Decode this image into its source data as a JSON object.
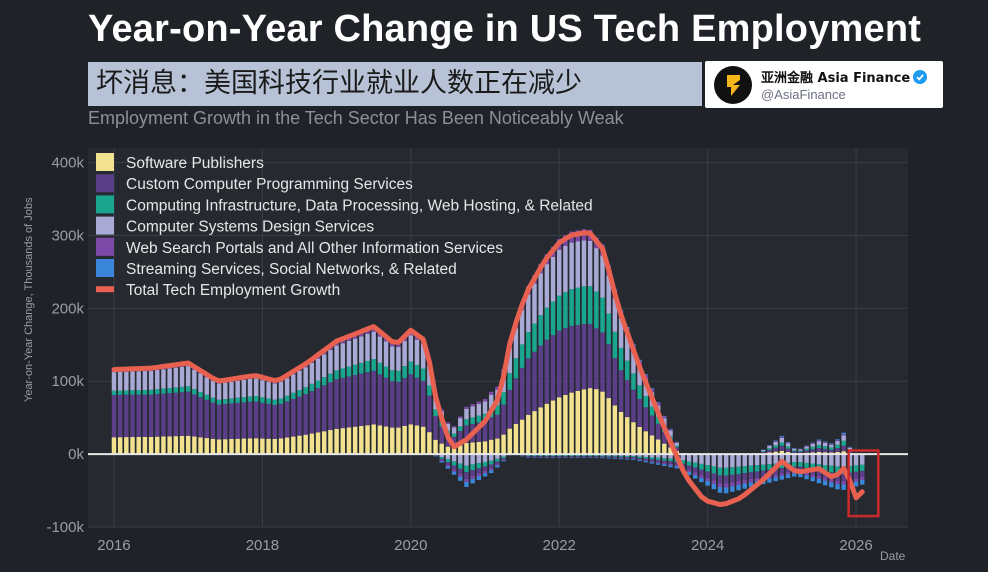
{
  "header": {
    "title": "Year-on-Year Change in US Tech Employment",
    "chinese_banner": "坏消息：美国科技行业就业人数正在减少",
    "subtitle": "Employment Growth in the Tech Sector Has Been Noticeably Weak"
  },
  "badge": {
    "name": "亚洲金融 Asia Finance",
    "handle": "@AsiaFinance",
    "logo_icon": "asia-finance-logo-icon",
    "verified_icon": "verified-check-icon"
  },
  "colors": {
    "background": "#1f2227",
    "grid": "#3a3e45",
    "axis_text": "#9a9da3",
    "zero_line": "#e8e8e8",
    "total_line": "#e8604f",
    "highlight_box": "#cc2a2a",
    "software": "#f2e28f",
    "custom_programming": "#5a3e88",
    "infrastructure": "#1aa68e",
    "systems_design": "#a9a9d6",
    "web_search": "#7c4aa6",
    "streaming": "#3a86d8"
  },
  "chart_data": {
    "type": "bar",
    "stacked": true,
    "title": "Year-on-Year Change in US Tech Employment",
    "xlabel": "Date",
    "ylabel": "Year-on-Year Change, Thousands of Jobs",
    "ylim": [
      -100,
      420
    ],
    "xlim": [
      2015.65,
      2026.7
    ],
    "y_ticks": [
      -100,
      0,
      100,
      200,
      300,
      400
    ],
    "y_tick_labels": [
      "-100k",
      "0k",
      "100k",
      "200k",
      "300k",
      "400k"
    ],
    "x_ticks": [
      2016,
      2018,
      2020,
      2022,
      2024,
      2026
    ],
    "x_tick_labels": [
      "2016",
      "2018",
      "2020",
      "2022",
      "2024",
      "2026"
    ],
    "legend_position": "top-left",
    "period": "monthly, Jan 2016 - Feb 2026",
    "legend": [
      {
        "name": "Software Publishers",
        "key": "software"
      },
      {
        "name": "Custom Computer Programming Services",
        "key": "custom_programming"
      },
      {
        "name": "Computing Infrastructure, Data Processing, Web Hosting, & Related",
        "key": "infrastructure"
      },
      {
        "name": "Computer Systems Design Services",
        "key": "systems_design"
      },
      {
        "name": "Web Search Portals and All Other Information Services",
        "key": "web_search"
      },
      {
        "name": "Streaming Services, Social Networks, & Related",
        "key": "streaming"
      },
      {
        "name": "Total Tech Employment Growth",
        "key": "total",
        "is_line": true
      }
    ],
    "total_growth_anchors": [
      [
        2016.0,
        116
      ],
      [
        2016.5,
        118
      ],
      [
        2017.0,
        125
      ],
      [
        2017.4,
        100
      ],
      [
        2017.9,
        108
      ],
      [
        2018.2,
        100
      ],
      [
        2018.6,
        125
      ],
      [
        2019.0,
        155
      ],
      [
        2019.5,
        175
      ],
      [
        2019.8,
        150
      ],
      [
        2020.0,
        170
      ],
      [
        2020.2,
        155
      ],
      [
        2020.35,
        70
      ],
      [
        2020.55,
        8
      ],
      [
        2020.75,
        20
      ],
      [
        2021.0,
        45
      ],
      [
        2021.2,
        80
      ],
      [
        2021.35,
        160
      ],
      [
        2021.55,
        220
      ],
      [
        2021.8,
        265
      ],
      [
        2022.0,
        290
      ],
      [
        2022.15,
        300
      ],
      [
        2022.4,
        305
      ],
      [
        2022.6,
        280
      ],
      [
        2022.8,
        200
      ],
      [
        2023.1,
        115
      ],
      [
        2023.4,
        40
      ],
      [
        2023.7,
        -30
      ],
      [
        2023.95,
        -63
      ],
      [
        2024.2,
        -70
      ],
      [
        2024.45,
        -60
      ],
      [
        2024.75,
        -35
      ],
      [
        2025.0,
        -10
      ],
      [
        2025.2,
        -25
      ],
      [
        2025.5,
        -20
      ],
      [
        2025.7,
        -33
      ],
      [
        2025.85,
        -18
      ],
      [
        2026.0,
        -60
      ],
      [
        2026.15,
        -45
      ]
    ],
    "component_share_anchors": {
      "software": [
        [
          2016.0,
          0.2
        ],
        [
          2018.0,
          0.2
        ],
        [
          2020.0,
          0.25
        ],
        [
          2021.5,
          0.22
        ],
        [
          2022.5,
          0.3
        ],
        [
          2023.3,
          0.3
        ],
        [
          2024.0,
          0.22
        ],
        [
          2026.2,
          0.12
        ]
      ],
      "custom_programming": [
        [
          2016.0,
          0.5
        ],
        [
          2020.0,
          0.42
        ],
        [
          2021.5,
          0.33
        ],
        [
          2022.5,
          0.28
        ],
        [
          2023.3,
          0.32
        ],
        [
          2024.0,
          0.3
        ],
        [
          2026.2,
          0.25
        ]
      ],
      "infrastructure": [
        [
          2016.0,
          0.05
        ],
        [
          2019.0,
          0.08
        ],
        [
          2021.5,
          0.15
        ],
        [
          2022.5,
          0.17
        ],
        [
          2024.0,
          0.12
        ],
        [
          2026.2,
          0.25
        ]
      ],
      "systems_design": [
        [
          2016.0,
          0.22
        ],
        [
          2020.0,
          0.22
        ],
        [
          2021.5,
          0.22
        ],
        [
          2022.5,
          0.2
        ],
        [
          2024.0,
          0.25
        ],
        [
          2026.2,
          0.25
        ]
      ],
      "web_search": [
        [
          2016.0,
          0.03
        ],
        [
          2022.5,
          0.05
        ],
        [
          2026.2,
          0.06
        ]
      ],
      "streaming": [
        [
          2016.0,
          0.0
        ],
        [
          2022.5,
          0.0
        ],
        [
          2026.2,
          0.07
        ]
      ]
    },
    "negative_offset_anchors": [
      [
        2016.0,
        0
      ],
      [
        2020.3,
        0
      ],
      [
        2020.45,
        -15
      ],
      [
        2020.75,
        -45
      ],
      [
        2021.1,
        -25
      ],
      [
        2021.35,
        0
      ],
      [
        2021.6,
        -5
      ],
      [
        2022.5,
        -5
      ],
      [
        2023.0,
        -8
      ],
      [
        2023.6,
        -20
      ],
      [
        2024.2,
        -55
      ],
      [
        2024.8,
        -40
      ],
      [
        2025.2,
        -30
      ],
      [
        2025.8,
        -50
      ],
      [
        2026.15,
        -40
      ]
    ],
    "highlight": {
      "label": "recent months (2025-2026) highlighted",
      "from": 2025.9,
      "to": 2026.3
    }
  }
}
